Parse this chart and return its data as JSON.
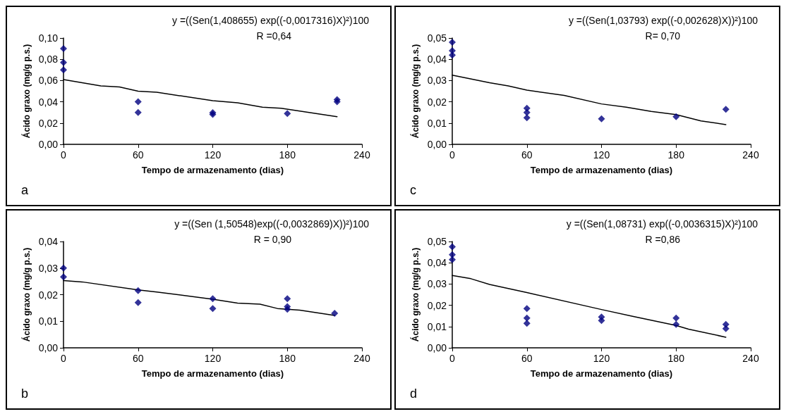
{
  "chart_data": [
    {
      "type": "scatter",
      "xlabel": "Tempo de armazenamento (dias)",
      "ylabel": "Ácido graxo (mg/g p.s.)",
      "annotations": [
        "y =((Sen(1,408655) exp((-0,0017316)X)²)100",
        "R =0,64",
        "a"
      ],
      "xlim": [
        0,
        240
      ],
      "xticks": [
        0,
        60,
        120,
        180,
        240
      ],
      "ylim": [
        0,
        0.1
      ],
      "yticks": [
        {
          "value": 0,
          "label": "0,00"
        },
        {
          "value": 0.02,
          "label": "0,02"
        },
        {
          "value": 0.04,
          "label": "0,04"
        },
        {
          "value": 0.06,
          "label": "0,06"
        },
        {
          "value": 0.08,
          "label": "0,08"
        },
        {
          "value": 0.1,
          "label": "0,10"
        }
      ],
      "grid": false,
      "series": [
        {
          "marker": "diamond",
          "color": "#000080",
          "x": [
            0,
            0,
            0,
            60,
            60,
            120,
            120,
            180,
            220,
            220
          ],
          "values": [
            0.09,
            0.077,
            0.07,
            0.04,
            0.03,
            0.0298,
            0.0282,
            0.029,
            0.042,
            0.04
          ]
        },
        {
          "type": "line",
          "marker": "none",
          "color": "#000000",
          "x": [
            0,
            30,
            45,
            60,
            75,
            120,
            140,
            160,
            175,
            220
          ],
          "values": [
            0.061,
            0.055,
            0.054,
            0.05,
            0.049,
            0.041,
            0.039,
            0.035,
            0.034,
            0.026
          ]
        }
      ]
    },
    {
      "type": "scatter",
      "xlabel": "Tempo de armazenamento (dias)",
      "ylabel": "Ácido graxo (mg/g p.s.)",
      "annotations": [
        "y =((Sen(1,03793) exp((-0,002628)X))²)100",
        "R= 0,70",
        "c"
      ],
      "xlim": [
        0,
        240
      ],
      "xticks": [
        0,
        60,
        120,
        180,
        240
      ],
      "ylim": [
        0,
        0.05
      ],
      "yticks": [
        {
          "value": 0,
          "label": "0,00"
        },
        {
          "value": 0.01,
          "label": "0,01"
        },
        {
          "value": 0.02,
          "label": "0,02"
        },
        {
          "value": 0.03,
          "label": "0,03"
        },
        {
          "value": 0.04,
          "label": "0,04"
        },
        {
          "value": 0.05,
          "label": "0,05"
        }
      ],
      "grid": false,
      "series": [
        {
          "marker": "diamond",
          "color": "#000080",
          "x": [
            0,
            0,
            0,
            60,
            60,
            60,
            120,
            180,
            220
          ],
          "values": [
            0.048,
            0.044,
            0.042,
            0.017,
            0.015,
            0.0125,
            0.012,
            0.013,
            0.0165
          ]
        },
        {
          "type": "line",
          "marker": "none",
          "color": "#000000",
          "x": [
            0,
            30,
            45,
            60,
            90,
            120,
            140,
            160,
            180,
            200,
            220
          ],
          "values": [
            0.0325,
            0.029,
            0.0275,
            0.0255,
            0.023,
            0.019,
            0.0175,
            0.0155,
            0.014,
            0.011,
            0.0093
          ]
        }
      ]
    },
    {
      "type": "scatter",
      "xlabel": "Tempo de armazenamento (dias)",
      "ylabel": "Ácido graxo (mg/g p.s.)",
      "annotations": [
        "y =((Sen (1,50548)exp((-0,0032869)X))²)100",
        "R = 0,90",
        "b"
      ],
      "xlim": [
        0,
        240
      ],
      "xticks": [
        0,
        60,
        120,
        180,
        240
      ],
      "ylim": [
        0,
        0.04
      ],
      "yticks": [
        {
          "value": 0,
          "label": "0,00"
        },
        {
          "value": 0.01,
          "label": "0,01"
        },
        {
          "value": 0.02,
          "label": "0,02"
        },
        {
          "value": 0.03,
          "label": "0,03"
        },
        {
          "value": 0.04,
          "label": "0,04"
        }
      ],
      "grid": false,
      "series": [
        {
          "marker": "diamond",
          "color": "#000080",
          "x": [
            0,
            0,
            60,
            60,
            120,
            120,
            180,
            180,
            180,
            218
          ],
          "values": [
            0.03,
            0.0267,
            0.0215,
            0.017,
            0.0185,
            0.0148,
            0.0185,
            0.0155,
            0.0145,
            0.013
          ]
        },
        {
          "type": "line",
          "marker": "none",
          "color": "#000000",
          "x": [
            0,
            15,
            60,
            75,
            120,
            140,
            158,
            172,
            190,
            218
          ],
          "values": [
            0.0253,
            0.0248,
            0.0218,
            0.021,
            0.0183,
            0.0168,
            0.0164,
            0.0148,
            0.0142,
            0.0122
          ]
        }
      ]
    },
    {
      "type": "scatter",
      "xlabel": "Tempo de armazenamento (dias)",
      "ylabel": "Ácido graxo (mg/g p.s.)",
      "annotations": [
        "y =((Sen(1,08731) exp((-0,0036315)X)²)100",
        "R =0,86",
        "d"
      ],
      "xlim": [
        0,
        240
      ],
      "xticks": [
        0,
        60,
        120,
        180,
        240
      ],
      "ylim": [
        0,
        0.05
      ],
      "yticks": [
        {
          "value": 0,
          "label": "0,00"
        },
        {
          "value": 0.01,
          "label": "0,01"
        },
        {
          "value": 0.02,
          "label": "0,02"
        },
        {
          "value": 0.03,
          "label": "0,03"
        },
        {
          "value": 0.04,
          "label": "0,04"
        },
        {
          "value": 0.05,
          "label": "0,05"
        }
      ],
      "grid": false,
      "series": [
        {
          "marker": "diamond",
          "color": "#000080",
          "x": [
            0,
            0,
            0,
            60,
            60,
            60,
            120,
            120,
            180,
            180,
            220,
            220
          ],
          "values": [
            0.0475,
            0.0438,
            0.0415,
            0.0185,
            0.014,
            0.0115,
            0.0145,
            0.0128,
            0.014,
            0.011,
            0.011,
            0.009
          ]
        },
        {
          "type": "line",
          "marker": "none",
          "color": "#000000",
          "x": [
            0,
            15,
            30,
            60,
            120,
            145,
            180,
            190,
            220
          ],
          "values": [
            0.034,
            0.0325,
            0.0298,
            0.026,
            0.018,
            0.0148,
            0.0105,
            0.0088,
            0.005
          ]
        }
      ]
    }
  ]
}
